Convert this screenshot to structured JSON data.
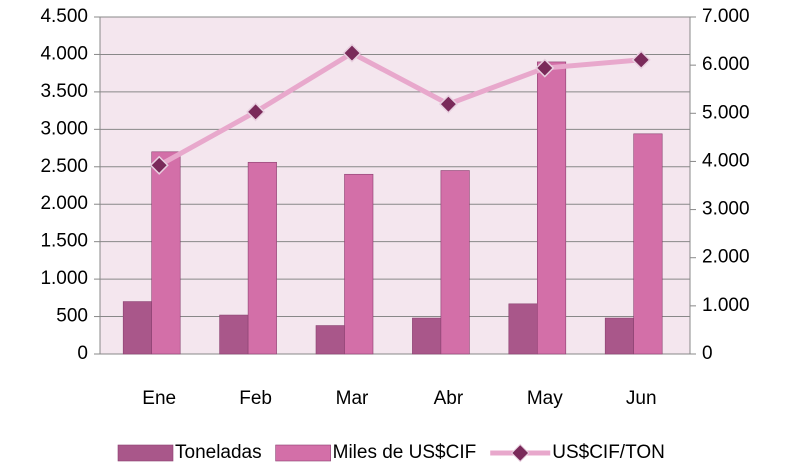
{
  "chart_data": {
    "type": "bar_line",
    "categories": [
      "Ene",
      "Feb",
      "Mar",
      "Abr",
      "May",
      "Jun"
    ],
    "series": [
      {
        "name": "Toneladas",
        "color": "#a9578a",
        "values": [
          700,
          520,
          380,
          480,
          670,
          480
        ]
      },
      {
        "name": "Miles de US$CIF",
        "color": "#d36fa8",
        "values": [
          2700,
          2560,
          2400,
          2450,
          3900,
          2940
        ]
      },
      {
        "name": "US$CIF/TON",
        "color": "#e8a8cc",
        "marker_color": "#7a2a5a",
        "axis": "y2",
        "values": [
          3920,
          5030,
          6250,
          5190,
          5940,
          6110
        ]
      }
    ],
    "ylim": [
      0,
      4500
    ],
    "yticks": [
      0,
      500,
      {
        "value": 1000,
        "label": "1.000"
      },
      {
        "value": 1500,
        "label": "1.500"
      },
      {
        "value": 2000,
        "label": "2.000"
      },
      {
        "value": 2500,
        "label": "2.500"
      },
      {
        "value": 3000,
        "label": "3.000"
      },
      {
        "value": 3500,
        "label": "3.500"
      },
      {
        "value": 4000,
        "label": "4.000"
      },
      {
        "value": 4500,
        "label": "4.500"
      }
    ],
    "y2lim": [
      0,
      7000
    ],
    "y2ticks": [
      0,
      {
        "value": 1000,
        "label": "1.000"
      },
      {
        "value": 2000,
        "label": "2.000"
      },
      {
        "value": 3000,
        "label": "3.000"
      },
      {
        "value": 4000,
        "label": "4.000"
      },
      {
        "value": 5000,
        "label": "5.000"
      },
      {
        "value": 6000,
        "label": "6.000"
      },
      {
        "value": 7000,
        "label": "7.000"
      }
    ],
    "grid": true,
    "legend": "bottom"
  }
}
